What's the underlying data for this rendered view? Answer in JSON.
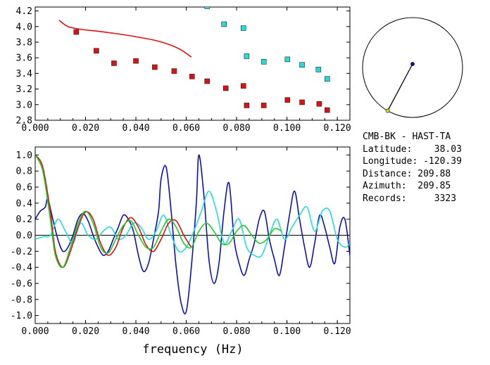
{
  "info": {
    "station_pair": "CMB-BK - HAST-TA",
    "latitude_label": "Latitude:",
    "latitude_value": "38.03",
    "longitude_label": "Longitude:",
    "longitude_value": "-120.39",
    "distance_label": "Distance:",
    "distance_value": "209.88",
    "azimuth_label": "Azimuth:",
    "azimuth_value": "209.85",
    "records_label": "Records:",
    "records_value": "3323"
  },
  "colors": {
    "red": "#dd1111",
    "cyan": "#22dddd",
    "blue": "#1010b0",
    "green": "#22cc22",
    "axis": "#000000"
  },
  "chart_data": [
    {
      "type": "scatter",
      "xlim": [
        0.0,
        0.125
      ],
      "ylim": [
        2.8,
        4.25
      ],
      "xticks": [
        "0.000",
        "0.020",
        "0.040",
        "0.060",
        "0.080",
        "0.100",
        "0.120"
      ],
      "yticks": [
        "2.8",
        "3.0",
        "3.2",
        "3.4",
        "3.6",
        "3.8",
        "4.0",
        "4.2"
      ],
      "grid": false,
      "series": [
        {
          "color": "#dd1111",
          "marker": "square",
          "points": [
            [
              0.0163,
              3.93
            ],
            [
              0.0243,
              3.69
            ],
            [
              0.0313,
              3.53
            ],
            [
              0.04,
              3.56
            ],
            [
              0.0475,
              3.48
            ],
            [
              0.0552,
              3.43
            ],
            [
              0.0623,
              3.36
            ],
            [
              0.0683,
              3.3
            ],
            [
              0.0757,
              3.21
            ],
            [
              0.0827,
              3.24
            ],
            [
              0.084,
              2.99
            ],
            [
              0.0908,
              2.99
            ],
            [
              0.1002,
              3.06
            ],
            [
              0.106,
              3.03
            ],
            [
              0.1128,
              3.01
            ],
            [
              0.116,
              2.93
            ]
          ]
        },
        {
          "color": "#22dddd",
          "marker": "square",
          "points": [
            [
              0.0683,
              4.26
            ],
            [
              0.075,
              4.03
            ],
            [
              0.0827,
              3.98
            ],
            [
              0.084,
              3.62
            ],
            [
              0.0908,
              3.55
            ],
            [
              0.1002,
              3.58
            ],
            [
              0.106,
              3.51
            ],
            [
              0.1125,
              3.45
            ],
            [
              0.116,
              3.33
            ]
          ]
        },
        {
          "color": "#dd1111",
          "marker": "line",
          "points": [
            [
              0.0095,
              4.08
            ],
            [
              0.013,
              4.0
            ],
            [
              0.018,
              3.965
            ],
            [
              0.025,
              3.94
            ],
            [
              0.032,
              3.91
            ],
            [
              0.04,
              3.87
            ],
            [
              0.048,
              3.82
            ],
            [
              0.054,
              3.76
            ],
            [
              0.058,
              3.7
            ],
            [
              0.062,
              3.61
            ]
          ]
        }
      ]
    },
    {
      "type": "line",
      "xlabel": "frequency (Hz)",
      "xlim": [
        0.0,
        0.125
      ],
      "ylim": [
        -1.1,
        1.1
      ],
      "xticks": [
        "0.000",
        "0.020",
        "0.040",
        "0.060",
        "0.080",
        "0.100",
        "0.120"
      ],
      "yticks": [
        "1.0",
        "0.8",
        "0.6",
        "0.4",
        "0.2",
        "0.0",
        "-0.2",
        "-0.4",
        "-0.6",
        "-0.8",
        "-1.0"
      ],
      "zero_line": true,
      "grid": false,
      "series": [
        {
          "color": "#1010b0",
          "x": [
            0.0,
            0.002,
            0.004,
            0.005,
            0.007,
            0.009,
            0.011,
            0.013,
            0.015,
            0.017,
            0.019,
            0.021,
            0.023,
            0.025,
            0.027,
            0.029,
            0.031,
            0.033,
            0.035,
            0.037,
            0.039,
            0.041,
            0.043,
            0.045,
            0.047,
            0.049,
            0.05,
            0.052,
            0.054,
            0.056,
            0.058,
            0.06,
            0.062,
            0.064,
            0.065,
            0.067,
            0.069,
            0.071,
            0.073,
            0.075,
            0.077,
            0.079,
            0.081,
            0.083,
            0.085,
            0.087,
            0.089,
            0.091,
            0.093,
            0.095,
            0.097,
            0.099,
            0.101,
            0.103,
            0.105,
            0.107,
            0.109,
            0.111,
            0.113,
            0.115,
            0.117,
            0.119,
            0.121,
            0.123,
            0.125
          ],
          "y": [
            0.2,
            0.3,
            0.35,
            0.45,
            0.2,
            -0.05,
            -0.2,
            -0.15,
            0.0,
            0.2,
            0.27,
            0.18,
            0.0,
            -0.15,
            -0.25,
            -0.2,
            -0.05,
            0.1,
            0.25,
            0.2,
            0.05,
            -0.25,
            -0.45,
            -0.35,
            -0.05,
            0.3,
            0.7,
            0.85,
            0.3,
            -0.4,
            -0.85,
            -0.95,
            -0.4,
            0.4,
            1.0,
            0.5,
            -0.3,
            -0.6,
            -0.35,
            0.3,
            0.65,
            -0.05,
            -0.35,
            -0.5,
            -0.3,
            -0.1,
            0.2,
            0.3,
            -0.05,
            -0.3,
            -0.5,
            -0.15,
            0.25,
            0.55,
            0.2,
            -0.15,
            -0.4,
            -0.1,
            0.25,
            0.1,
            -0.15,
            -0.35,
            0.1,
            0.2,
            -0.25
          ]
        },
        {
          "color": "#22dddd",
          "x": [
            0.0,
            0.003,
            0.006,
            0.009,
            0.012,
            0.015,
            0.018,
            0.021,
            0.024,
            0.027,
            0.03,
            0.033,
            0.036,
            0.039,
            0.042,
            0.045,
            0.048,
            0.051,
            0.054,
            0.057,
            0.06,
            0.063,
            0.066,
            0.069,
            0.072,
            0.075,
            0.078,
            0.081,
            0.084,
            0.087,
            0.09,
            0.093,
            0.096,
            0.099,
            0.102,
            0.105,
            0.108,
            0.111,
            0.114,
            0.117,
            0.12,
            0.123,
            0.125
          ],
          "y": [
            -0.05,
            -0.02,
            0.0,
            0.2,
            0.05,
            -0.1,
            0.15,
            0.0,
            -0.05,
            0.05,
            0.1,
            -0.05,
            0.0,
            0.15,
            0.1,
            -0.05,
            0.05,
            0.25,
            0.0,
            -0.2,
            -0.15,
            0.05,
            0.3,
            0.55,
            0.3,
            -0.1,
            0.05,
            0.2,
            -0.15,
            -0.25,
            -0.25,
            0.0,
            0.2,
            -0.05,
            0.1,
            0.25,
            0.35,
            0.05,
            0.3,
            0.3,
            -0.05,
            -0.15,
            -0.1
          ]
        },
        {
          "color": "#dd1111",
          "x": [
            0.0,
            0.003,
            0.006,
            0.008,
            0.011,
            0.014,
            0.017,
            0.02,
            0.023,
            0.026,
            0.029,
            0.032,
            0.035,
            0.038,
            0.041,
            0.044,
            0.047,
            0.05,
            0.053,
            0.056,
            0.059,
            0.062
          ],
          "y": [
            1.0,
            0.85,
            0.3,
            -0.2,
            -0.4,
            -0.2,
            0.1,
            0.29,
            0.2,
            -0.1,
            -0.25,
            -0.15,
            0.1,
            0.22,
            0.1,
            -0.12,
            -0.2,
            -0.05,
            0.15,
            0.18,
            0.0,
            -0.15
          ]
        },
        {
          "color": "#22cc22",
          "x": [
            0.0,
            0.003,
            0.006,
            0.008,
            0.011,
            0.014,
            0.017,
            0.02,
            0.023,
            0.026,
            0.029,
            0.032,
            0.035,
            0.038,
            0.041,
            0.044,
            0.047,
            0.05,
            0.053,
            0.056,
            0.059,
            0.062,
            0.065,
            0.068,
            0.071,
            0.074,
            0.077,
            0.08,
            0.083,
            0.086,
            0.089,
            0.092,
            0.095,
            0.098
          ],
          "y": [
            1.0,
            0.8,
            0.2,
            -0.25,
            -0.4,
            -0.15,
            0.15,
            0.3,
            0.15,
            -0.15,
            -0.22,
            -0.05,
            0.12,
            0.18,
            0.0,
            -0.15,
            -0.15,
            0.05,
            0.2,
            0.1,
            -0.1,
            -0.15,
            0.05,
            0.15,
            0.05,
            -0.1,
            -0.1,
            0.05,
            0.12,
            0.0,
            -0.1,
            -0.05,
            0.08,
            0.05
          ]
        }
      ]
    }
  ],
  "map": {
    "station_marker_color": "#1010b0",
    "end_marker_color": "#dddd22",
    "azimuth_deg": 209.85
  }
}
